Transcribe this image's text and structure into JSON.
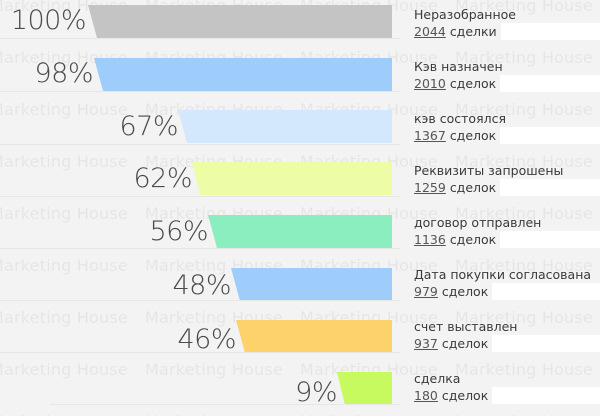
{
  "watermark_text": "Marketing House",
  "chart_data": {
    "type": "funnel",
    "title": "",
    "value_unit": "%",
    "stages": [
      {
        "label": "Неразобранное",
        "percent": 100,
        "percent_label": "100%",
        "count": 2044,
        "count_label": "2044",
        "unit": "сделки",
        "color": "#c4c4c4"
      },
      {
        "label": "Кэв назначен",
        "percent": 98,
        "percent_label": "98%",
        "count": 2010,
        "count_label": "2010",
        "unit": "сделок",
        "color": "#9fcdfb"
      },
      {
        "label": "кэв состоялся",
        "percent": 67,
        "percent_label": "67%",
        "count": 1367,
        "count_label": "1367",
        "unit": "сделок",
        "color": "#d3e8fc"
      },
      {
        "label": "Реквизиты запрошены",
        "percent": 62,
        "percent_label": "62%",
        "count": 1259,
        "count_label": "1259",
        "unit": "сделок",
        "color": "#ecfda5"
      },
      {
        "label": "договор отправлен",
        "percent": 56,
        "percent_label": "56%",
        "count": 1136,
        "count_label": "1136",
        "unit": "сделок",
        "color": "#8aeebf"
      },
      {
        "label": "Дата покупки согласована",
        "percent": 48,
        "percent_label": "48%",
        "count": 979,
        "count_label": "979",
        "unit": "сделок",
        "color": "#9fcdfb"
      },
      {
        "label": "счет выставлен",
        "percent": 46,
        "percent_label": "46%",
        "count": 937,
        "count_label": "937",
        "unit": "сделок",
        "color": "#fed26a"
      },
      {
        "label": "сделка",
        "percent": 9,
        "percent_label": "9%",
        "count": 180,
        "count_label": "180",
        "unit": "сделок",
        "color": "#c6fa5e"
      }
    ]
  }
}
